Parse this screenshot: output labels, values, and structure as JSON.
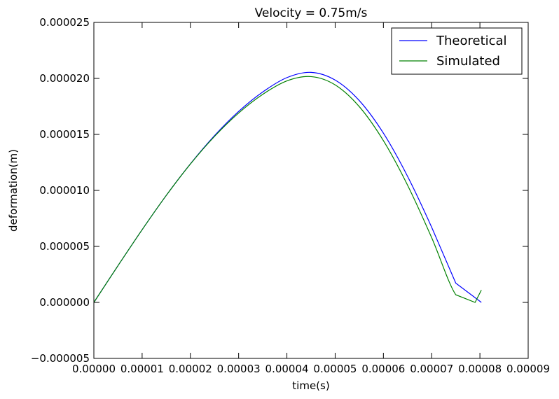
{
  "chart_data": {
    "type": "line",
    "title": "Velocity = 0.75m/s",
    "xlabel": "time(s)",
    "ylabel": "deformation(m)",
    "xlim": [
      0.0,
      9e-05
    ],
    "ylim": [
      -5e-06,
      2.5e-05
    ],
    "x_ticks": [
      0.0,
      1e-05,
      2e-05,
      3e-05,
      4e-05,
      5e-05,
      6e-05,
      7e-05,
      8e-05,
      9e-05
    ],
    "x_tick_labels": [
      "0.00000",
      "0.00001",
      "0.00002",
      "0.00003",
      "0.00004",
      "0.00005",
      "0.00006",
      "0.00007",
      "0.00008",
      "0.00009"
    ],
    "y_ticks": [
      -5e-06,
      0.0,
      5e-06,
      1e-05,
      1.5e-05,
      2e-05,
      2.5e-05
    ],
    "y_tick_labels": [
      "−0.000005",
      "0.000000",
      "0.000005",
      "0.000010",
      "0.000015",
      "0.000020",
      "0.000025"
    ],
    "grid": false,
    "legend_position": "upper-right",
    "series": [
      {
        "name": "Theoretical",
        "color": "#0000ff",
        "x": [
          0.0,
          5e-06,
          1e-05,
          1.5e-05,
          2e-05,
          2.5e-05,
          3e-05,
          3.5e-05,
          4e-05,
          4.5e-05,
          5e-05,
          5.5e-05,
          6e-05,
          6.5e-05,
          7e-05,
          7.5e-05,
          8.03e-05
        ],
        "y": [
          0.0,
          3.28e-06,
          6.49e-06,
          9.55e-06,
          1.237e-05,
          1.489e-05,
          1.705e-05,
          1.879e-05,
          2.007e-05,
          2.054e-05,
          1.985e-05,
          1.802e-05,
          1.511e-05,
          1.126e-05,
          6.71e-06,
          1.72e-06,
          0.0
        ]
      },
      {
        "name": "Simulated",
        "color": "#008000",
        "x": [
          0.0,
          5e-06,
          1e-05,
          1.5e-05,
          2e-05,
          2.5e-05,
          3e-05,
          3.5e-05,
          4e-05,
          4.5e-05,
          5e-05,
          5.5e-05,
          6e-05,
          6.5e-05,
          7e-05,
          7.5e-05,
          7.9e-05,
          8.03e-05
        ],
        "y": [
          0.0,
          3.28e-06,
          6.49e-06,
          9.55e-06,
          1.235e-05,
          1.482e-05,
          1.691e-05,
          1.858e-05,
          1.978e-05,
          2.016e-05,
          1.942e-05,
          1.748e-05,
          1.444e-05,
          1.047e-05,
          5.78e-06,
          6.8e-07,
          0.0,
          1.1e-06
        ]
      }
    ]
  }
}
